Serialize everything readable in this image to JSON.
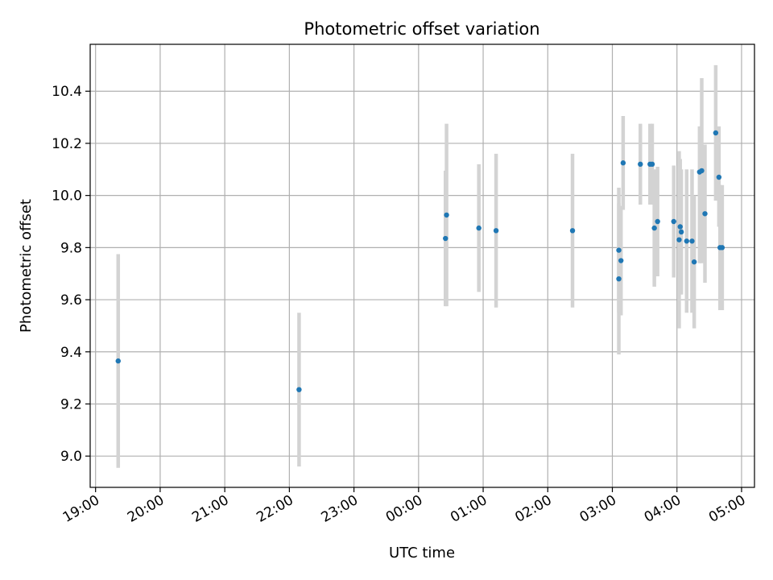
{
  "chart_data": {
    "type": "scatter",
    "title": "Photometric offset variation",
    "xlabel": "UTC time",
    "ylabel": "Photometric offset",
    "x_unit": "time of day (UTC), crossing midnight",
    "xlim": [
      "18:55",
      "05:12"
    ],
    "ylim": [
      8.88,
      10.58
    ],
    "x_ticks": [
      "19:00",
      "20:00",
      "21:00",
      "22:00",
      "23:00",
      "00:00",
      "01:00",
      "02:00",
      "03:00",
      "04:00",
      "05:00"
    ],
    "y_ticks": [
      9.0,
      9.2,
      9.4,
      9.6,
      9.8,
      10.0,
      10.2,
      10.4
    ],
    "y_tick_labels": [
      "9.0",
      "9.2",
      "9.4",
      "9.6",
      "9.8",
      "10.0",
      "10.2",
      "10.4"
    ],
    "grid": true,
    "colors": {
      "point": "#1f77b4",
      "errorbar": "#d3d3d3"
    },
    "points": [
      {
        "x": "19:21",
        "y": 9.365,
        "lo": 8.955,
        "hi": 9.775
      },
      {
        "x": "22:09",
        "y": 9.255,
        "lo": 8.96,
        "hi": 9.55
      },
      {
        "x": "00:25",
        "y": 9.835,
        "lo": 9.575,
        "hi": 10.095
      },
      {
        "x": "00:26",
        "y": 9.925,
        "lo": 9.575,
        "hi": 10.275
      },
      {
        "x": "00:56",
        "y": 9.875,
        "lo": 9.63,
        "hi": 10.12
      },
      {
        "x": "01:12",
        "y": 9.865,
        "lo": 9.57,
        "hi": 10.16
      },
      {
        "x": "02:23",
        "y": 9.865,
        "lo": 9.57,
        "hi": 10.16
      },
      {
        "x": "03:06",
        "y": 9.79,
        "lo": 9.55,
        "hi": 10.03
      },
      {
        "x": "03:06",
        "y": 9.68,
        "lo": 9.39,
        "hi": 9.97
      },
      {
        "x": "03:08",
        "y": 9.75,
        "lo": 9.54,
        "hi": 9.96
      },
      {
        "x": "03:10",
        "y": 10.125,
        "lo": 9.945,
        "hi": 10.305
      },
      {
        "x": "03:26",
        "y": 10.12,
        "lo": 9.965,
        "hi": 10.275
      },
      {
        "x": "03:35",
        "y": 10.12,
        "lo": 9.965,
        "hi": 10.275
      },
      {
        "x": "03:37",
        "y": 10.12,
        "lo": 9.965,
        "hi": 10.275
      },
      {
        "x": "03:39",
        "y": 9.875,
        "lo": 9.65,
        "hi": 10.1
      },
      {
        "x": "03:42",
        "y": 9.9,
        "lo": 9.69,
        "hi": 10.11
      },
      {
        "x": "03:57",
        "y": 9.9,
        "lo": 9.685,
        "hi": 10.115
      },
      {
        "x": "04:02",
        "y": 9.83,
        "lo": 9.49,
        "hi": 10.17
      },
      {
        "x": "04:03",
        "y": 9.88,
        "lo": 9.62,
        "hi": 10.14
      },
      {
        "x": "04:04",
        "y": 9.86,
        "lo": 9.62,
        "hi": 10.1
      },
      {
        "x": "04:09",
        "y": 9.825,
        "lo": 9.55,
        "hi": 10.1
      },
      {
        "x": "04:14",
        "y": 9.825,
        "lo": 9.55,
        "hi": 10.1
      },
      {
        "x": "04:16",
        "y": 9.745,
        "lo": 9.49,
        "hi": 10.0
      },
      {
        "x": "04:21",
        "y": 10.09,
        "lo": 9.74,
        "hi": 10.265
      },
      {
        "x": "04:23",
        "y": 10.095,
        "lo": 9.74,
        "hi": 10.45
      },
      {
        "x": "04:26",
        "y": 9.93,
        "lo": 9.665,
        "hi": 10.195
      },
      {
        "x": "04:36",
        "y": 10.24,
        "lo": 9.98,
        "hi": 10.5
      },
      {
        "x": "04:39",
        "y": 10.07,
        "lo": 9.88,
        "hi": 10.265
      },
      {
        "x": "04:40",
        "y": 9.8,
        "lo": 9.56,
        "hi": 10.04
      },
      {
        "x": "04:42",
        "y": 9.8,
        "lo": 9.56,
        "hi": 10.04
      }
    ]
  }
}
